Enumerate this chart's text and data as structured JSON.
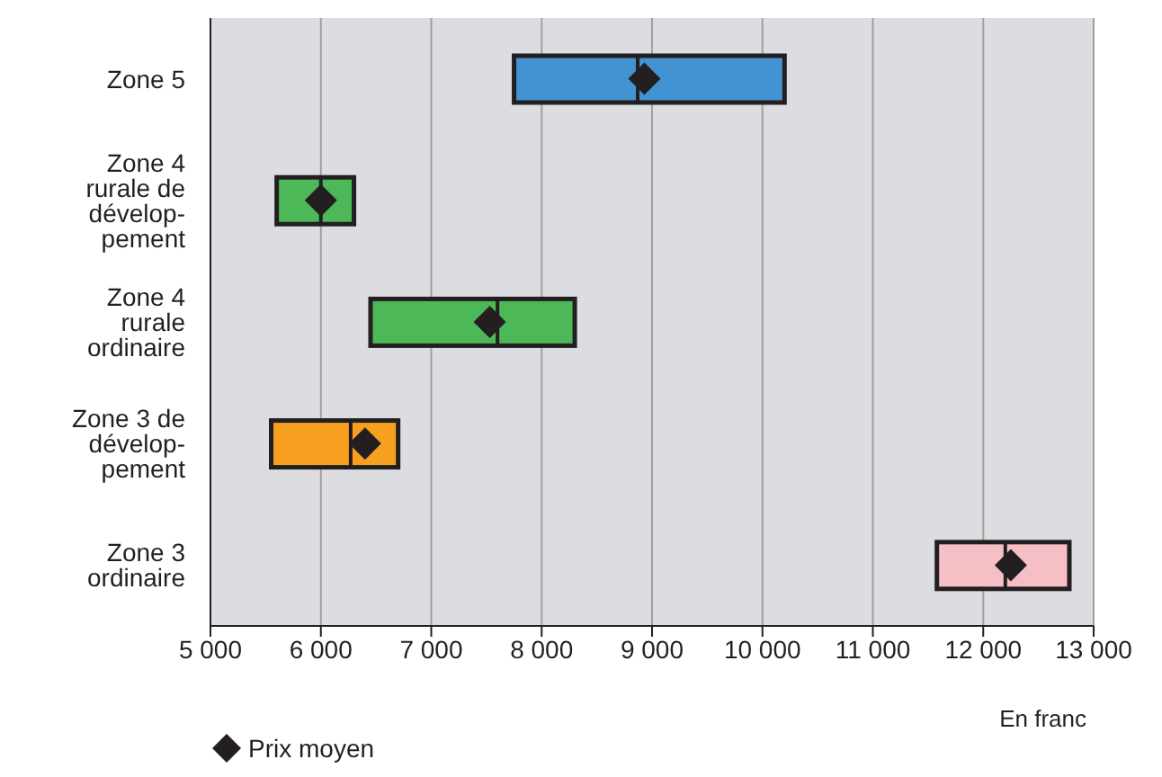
{
  "chart_data": {
    "type": "box",
    "orientation": "horizontal",
    "categories": [
      "Zone 5",
      "Zone 4\nrurale de\ndévelop-\npement",
      "Zone 4\nrurale\nordinaire",
      "Zone 3 de\ndévelop-\npement",
      "Zone 3\nordinaire"
    ],
    "xlabel": "En franc",
    "xlim": [
      5000,
      13000
    ],
    "xticks": [
      {
        "value": 5000,
        "label": "5 000"
      },
      {
        "value": 6000,
        "label": "6 000"
      },
      {
        "value": 7000,
        "label": "7 000"
      },
      {
        "value": 8000,
        "label": "8 000"
      },
      {
        "value": 9000,
        "label": "9 000"
      },
      {
        "value": 10000,
        "label": "10 000"
      },
      {
        "value": 11000,
        "label": "11 000"
      },
      {
        "value": 12000,
        "label": "12 000"
      },
      {
        "value": 13000,
        "label": "13 000"
      }
    ],
    "grid": "x",
    "legend": "bottom left",
    "series": [
      {
        "colors": [
          "#4393d3",
          "#4cb858",
          "#4cb858",
          "#f7a01f",
          "#f6bfc5"
        ],
        "boxes": [
          {
            "low": 7750,
            "q1": 7750,
            "median": 8870,
            "q3": 10200,
            "high": 10200
          },
          {
            "low": 5600,
            "q1": 5600,
            "median": 6000,
            "q3": 6300,
            "high": 6300
          },
          {
            "low": 6450,
            "q1": 6450,
            "median": 7600,
            "q3": 8300,
            "high": 8300
          },
          {
            "low": 5550,
            "q1": 5550,
            "median": 6270,
            "q3": 6700,
            "high": 6700
          },
          {
            "low": 11580,
            "q1": 11580,
            "median": 12200,
            "q3": 12780,
            "high": 12780
          }
        ]
      },
      {
        "type": "scatter",
        "name": "Prix moyen",
        "color": "#231f20",
        "marker": "diamond",
        "values": [
          8930,
          6000,
          7530,
          6400,
          12250
        ]
      }
    ]
  }
}
